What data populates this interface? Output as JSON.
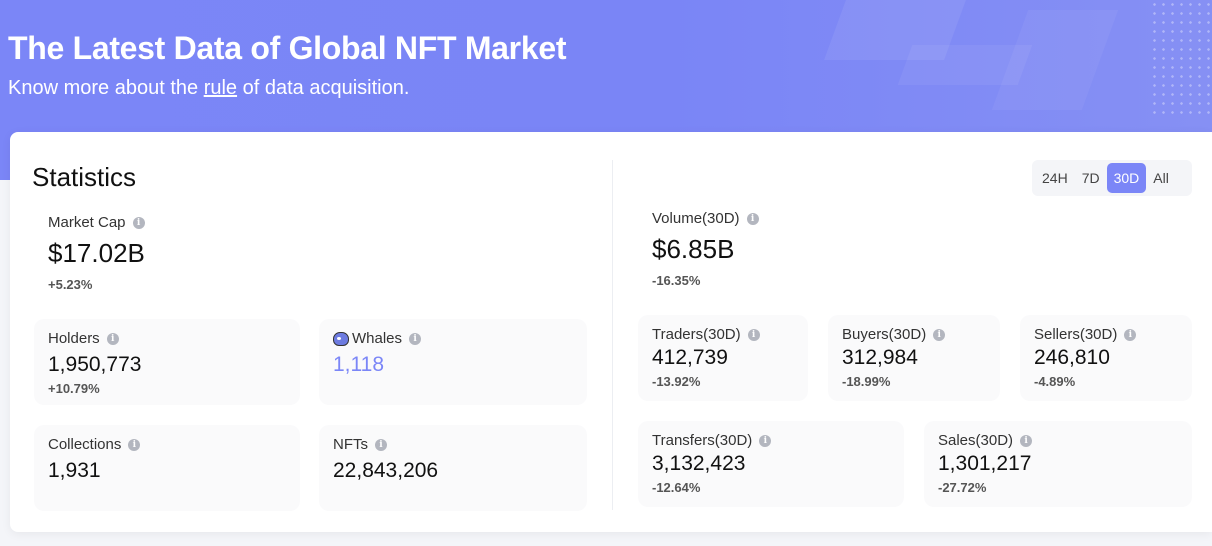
{
  "hero": {
    "title": "The Latest Data of Global NFT Market",
    "subtitle_prefix": "Know more about the ",
    "subtitle_link": "rule",
    "subtitle_suffix": " of data acquisition."
  },
  "statistics": {
    "title": "Statistics",
    "market_cap": {
      "label": "Market Cap",
      "value": "$17.02B",
      "change": "+5.23%"
    },
    "holders": {
      "label": "Holders",
      "value": "1,950,773",
      "change": "+10.79%"
    },
    "whales": {
      "label": "Whales",
      "value": "1,118"
    },
    "collections": {
      "label": "Collections",
      "value": "1,931"
    },
    "nfts": {
      "label": "NFTs",
      "value": "22,843,206"
    }
  },
  "range": {
    "options": [
      "24H",
      "7D",
      "30D",
      "All"
    ],
    "selected": "30D"
  },
  "volume": {
    "label": "Volume(30D)",
    "value": "$6.85B",
    "change": "-16.35%"
  },
  "traders": {
    "label": "Traders(30D)",
    "value": "412,739",
    "change": "-13.92%"
  },
  "buyers": {
    "label": "Buyers(30D)",
    "value": "312,984",
    "change": "-18.99%"
  },
  "sellers": {
    "label": "Sellers(30D)",
    "value": "246,810",
    "change": "-4.89%"
  },
  "transfers": {
    "label": "Transfers(30D)",
    "value": "3,132,423",
    "change": "-12.64%"
  },
  "sales": {
    "label": "Sales(30D)",
    "value": "1,301,217",
    "change": "-27.72%"
  },
  "colors": {
    "accent": "#7b86f7",
    "hero_bg": "#7a85f6",
    "tile_bg": "#fafafb"
  },
  "icons": {
    "info": "info-icon",
    "whale": "whale-icon"
  }
}
